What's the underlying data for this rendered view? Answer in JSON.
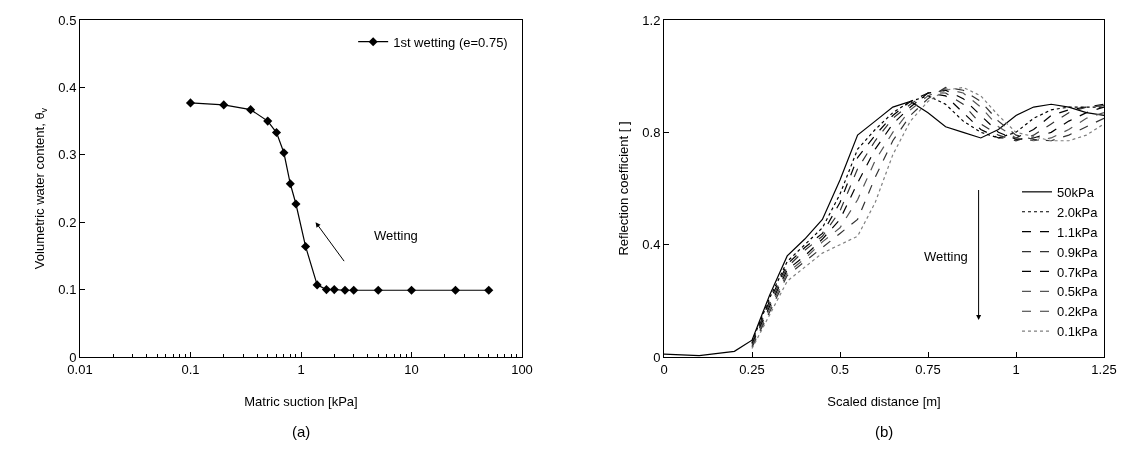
{
  "chart_data": [
    {
      "type": "line",
      "xlabel": "Matric suction [kPa]",
      "ylabel": "Volumetric water content, θ$_{v}$",
      "log": "x",
      "xlim": [
        0.01,
        100
      ],
      "xticks": [
        0.01,
        0.1,
        1,
        10,
        100
      ],
      "ylim": [
        0,
        0.5
      ],
      "yticks": [
        0,
        0.1,
        0.2,
        0.3,
        0.4,
        0.5
      ],
      "grid": false,
      "legend": "top right",
      "marker": "diamond",
      "line_style": "solid",
      "x": [
        0.1,
        0.2,
        0.35,
        0.5,
        0.6,
        0.7,
        0.8,
        0.9,
        1.1,
        1.4,
        1.7,
        2,
        2.5,
        3,
        5,
        10,
        25,
        50
      ],
      "series": [
        {
          "name": "1st wetting (e=0.75)",
          "color": "#000000",
          "values": [
            0.377,
            0.374,
            0.367,
            0.35,
            0.333,
            0.303,
            0.257,
            0.227,
            0.164,
            0.107,
            0.1,
            0.1,
            0.099,
            0.099,
            0.099,
            0.099,
            0.099,
            0.099
          ]
        }
      ],
      "annotations": [
        "Wetting",
        "(a)"
      ]
    },
    {
      "type": "line",
      "xlabel": "Scaled distance [m]",
      "ylabel": "Reflection coefficient [ ]",
      "xlim": [
        0,
        1.25
      ],
      "xticks": [
        0,
        0.25,
        0.5,
        0.75,
        1,
        1.25
      ],
      "ylim": [
        0,
        1.2
      ],
      "yticks": [
        0,
        0.4,
        0.8,
        1.2
      ],
      "grid": false,
      "legend": "right",
      "marker": "none",
      "x": [
        0,
        0.1,
        0.2,
        0.25,
        0.3,
        0.35,
        0.4,
        0.45,
        0.5,
        0.55,
        0.6,
        0.65,
        0.7,
        0.75,
        0.8,
        0.85,
        0.9,
        0.95,
        1,
        1.05,
        1.1,
        1.15,
        1.2,
        1.25
      ],
      "series": [
        {
          "name": "50kPa",
          "color": "#000000",
          "line_style": "solid",
          "values": [
            0.01,
            0.005,
            0.02,
            0.06,
            0.22,
            0.36,
            0.42,
            0.49,
            0.63,
            0.79,
            0.84,
            0.89,
            0.91,
            0.87,
            0.82,
            0.8,
            0.78,
            0.81,
            0.86,
            0.89,
            0.9,
            0.89,
            0.87,
            0.86
          ]
        },
        {
          "name": "2.0kPa",
          "color": "#000000",
          "line_style": "dotted",
          "values": [
            null,
            null,
            null,
            0.055,
            0.21,
            0.34,
            0.4,
            0.46,
            0.58,
            0.74,
            0.81,
            0.87,
            0.91,
            0.93,
            0.9,
            0.84,
            0.8,
            0.78,
            0.8,
            0.85,
            0.88,
            0.89,
            0.89,
            0.89
          ]
        },
        {
          "name": "1.1kPa",
          "color": "#000000",
          "line_style": "dashed",
          "values": [
            null,
            null,
            null,
            0.05,
            0.2,
            0.33,
            0.39,
            0.44,
            0.55,
            0.71,
            0.79,
            0.86,
            0.91,
            0.94,
            0.93,
            0.87,
            0.81,
            0.78,
            0.78,
            0.81,
            0.86,
            0.88,
            0.89,
            0.9
          ]
        },
        {
          "name": "0.9kPa",
          "color": "#333333",
          "line_style": "dashed",
          "values": [
            null,
            null,
            null,
            0.05,
            0.19,
            0.32,
            0.38,
            0.43,
            0.52,
            0.67,
            0.77,
            0.85,
            0.9,
            0.94,
            0.94,
            0.9,
            0.83,
            0.79,
            0.77,
            0.79,
            0.83,
            0.87,
            0.89,
            0.895
          ]
        },
        {
          "name": "0.7kPa",
          "color": "#000000",
          "line_style": "dashed",
          "values": [
            null,
            null,
            null,
            0.045,
            0.18,
            0.31,
            0.36,
            0.42,
            0.49,
            0.62,
            0.74,
            0.83,
            0.89,
            0.94,
            0.95,
            0.92,
            0.86,
            0.8,
            0.775,
            0.78,
            0.8,
            0.84,
            0.87,
            0.89
          ]
        },
        {
          "name": "0.5kPa",
          "color": "#555555",
          "line_style": "dashed",
          "values": [
            null,
            null,
            null,
            0.04,
            0.17,
            0.3,
            0.35,
            0.41,
            0.46,
            0.56,
            0.7,
            0.8,
            0.88,
            0.93,
            0.955,
            0.94,
            0.89,
            0.82,
            0.78,
            0.77,
            0.78,
            0.81,
            0.85,
            0.87
          ]
        },
        {
          "name": "0.2kPa",
          "color": "#333333",
          "line_style": "dashed",
          "values": [
            null,
            null,
            null,
            0.035,
            0.16,
            0.29,
            0.34,
            0.39,
            0.44,
            0.49,
            0.64,
            0.77,
            0.86,
            0.92,
            0.96,
            0.95,
            0.91,
            0.84,
            0.79,
            0.775,
            0.77,
            0.79,
            0.82,
            0.85
          ]
        },
        {
          "name": "0.1kPa",
          "color": "#808080",
          "line_style": "dotted",
          "values": [
            null,
            null,
            null,
            0.03,
            0.15,
            0.27,
            0.32,
            0.37,
            0.4,
            0.43,
            0.55,
            0.72,
            0.84,
            0.91,
            0.95,
            0.96,
            0.93,
            0.86,
            0.8,
            0.785,
            0.77,
            0.77,
            0.79,
            0.83
          ]
        }
      ],
      "annotations": [
        "Wetting",
        "(b)"
      ]
    }
  ]
}
